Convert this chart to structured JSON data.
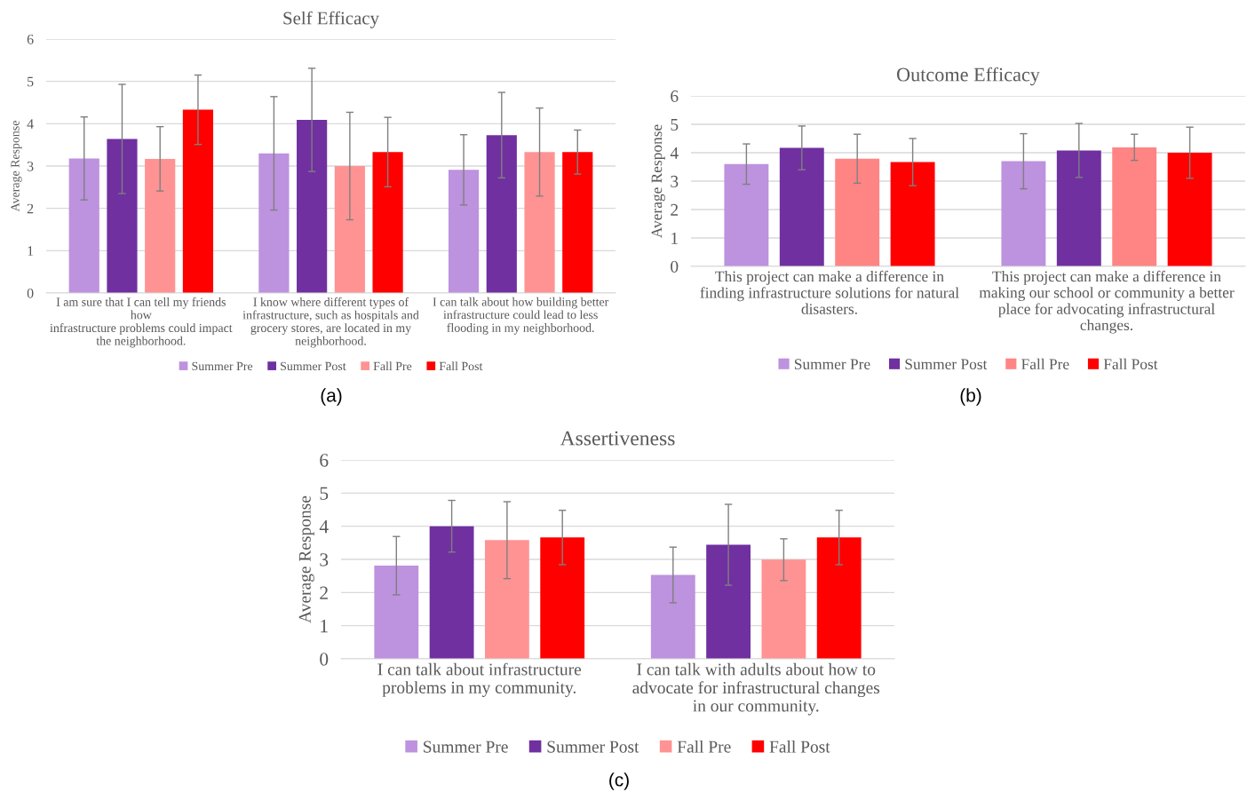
{
  "chart_data": [
    {
      "type": "bar",
      "title": "Self Efficacy",
      "ylabel": "Average Response",
      "categories": [
        "I am sure that I can tell my friends\nhow\ninfrastructure problems could impact\nthe neighborhood.",
        "I know where different types of\ninfrastructure, such as hospitals and\ngrocery stores, are located in my\nneighborhood.",
        "I can talk about how building better\ninfrastructure could lead to less\nflooding in my neighborhood."
      ],
      "series": [
        {
          "name": "Summer Pre",
          "color": "#bd92de",
          "values": [
            3.18,
            3.3,
            2.91
          ],
          "errors": [
            0.98,
            1.34,
            0.83
          ]
        },
        {
          "name": "Summer Post",
          "color": "#7030a0",
          "values": [
            3.64,
            4.09,
            3.73
          ],
          "errors": [
            1.29,
            1.22,
            1.01
          ]
        },
        {
          "name": "Fall Pre",
          "color": "#ff9393",
          "values": [
            3.17,
            3.0,
            3.33
          ],
          "errors": [
            0.76,
            1.27,
            1.04
          ]
        },
        {
          "name": "Fall Post",
          "color": "#ff0000",
          "values": [
            4.33,
            3.33,
            3.33
          ],
          "errors": [
            0.82,
            0.82,
            0.52
          ]
        }
      ],
      "ylim": [
        0,
        6
      ],
      "yticks": [
        0,
        1,
        2,
        3,
        4,
        5,
        6
      ],
      "grid": "y",
      "legend": "bottom",
      "annotations": [
        "(a)"
      ]
    },
    {
      "type": "bar",
      "title": "Outcome Efficacy",
      "ylabel": "Average Response",
      "categories": [
        "This project can make a difference in\nfinding infrastructure solutions for natural\ndisasters.",
        "This project can make a difference in\nmaking our school or community a better\nplace for advocating infrastructural\nchanges."
      ],
      "series": [
        {
          "name": "Summer Pre",
          "color": "#bd92de",
          "values": [
            3.6,
            3.7
          ],
          "errors": [
            0.71,
            0.97
          ]
        },
        {
          "name": "Summer Post",
          "color": "#7030a0",
          "values": [
            4.17,
            4.08
          ],
          "errors": [
            0.77,
            0.95
          ]
        },
        {
          "name": "Fall Pre",
          "color": "#ff8585",
          "values": [
            3.79,
            4.19
          ],
          "errors": [
            0.86,
            0.46
          ]
        },
        {
          "name": "Fall Post",
          "color": "#ff0000",
          "values": [
            3.67,
            4.0
          ],
          "errors": [
            0.83,
            0.9
          ]
        }
      ],
      "ylim": [
        0,
        6
      ],
      "yticks": [
        0,
        1,
        2,
        3,
        4,
        5,
        6
      ],
      "grid": "y",
      "legend": "bottom",
      "annotations": [
        "(b)"
      ]
    },
    {
      "type": "bar",
      "title": "Assertiveness",
      "ylabel": "Average Response",
      "categories": [
        "I can talk about infrastructure\nproblems in my community.",
        "I can talk with adults about how to\nadvocate for infrastructural changes\nin our community."
      ],
      "series": [
        {
          "name": "Summer Pre",
          "color": "#bd92de",
          "values": [
            2.81,
            2.53
          ],
          "errors": [
            0.88,
            0.84
          ]
        },
        {
          "name": "Summer Post",
          "color": "#7030a0",
          "values": [
            4.0,
            3.44
          ],
          "errors": [
            0.78,
            1.22
          ]
        },
        {
          "name": "Fall Pre",
          "color": "#ff9393",
          "values": [
            3.58,
            2.99
          ],
          "errors": [
            1.16,
            0.63
          ]
        },
        {
          "name": "Fall Post",
          "color": "#ff0000",
          "values": [
            3.66,
            3.66
          ],
          "errors": [
            0.82,
            0.82
          ]
        }
      ],
      "ylim": [
        0,
        6
      ],
      "yticks": [
        0,
        1,
        2,
        3,
        4,
        5,
        6
      ],
      "grid": "y",
      "legend": "bottom",
      "annotations": [
        "(c)"
      ]
    }
  ]
}
